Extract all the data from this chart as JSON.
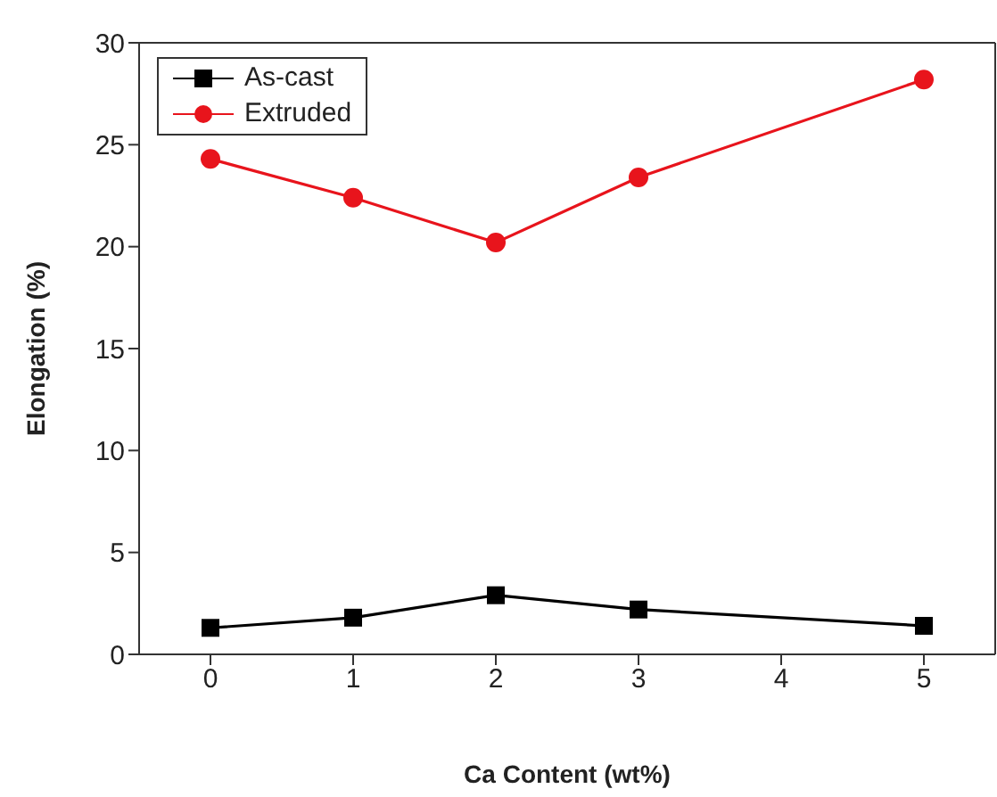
{
  "chart_data": {
    "type": "line",
    "xlabel": "Ca Content  (wt%)",
    "ylabel": "Elongation  (%)",
    "x": [
      0,
      1,
      2,
      3,
      5
    ],
    "series": [
      {
        "name": "As-cast",
        "color": "#000000",
        "marker": "square",
        "values": [
          1.3,
          1.8,
          2.9,
          2.2,
          1.4
        ]
      },
      {
        "name": "Extruded",
        "color": "#e8141c",
        "marker": "circle",
        "values": [
          24.3,
          22.4,
          20.2,
          23.4,
          28.2
        ]
      }
    ],
    "xlim": [
      -0.5,
      5.5
    ],
    "xticks": [
      0,
      1,
      2,
      3,
      4,
      5
    ],
    "ylim": [
      0,
      30
    ],
    "yticks": [
      0,
      5,
      10,
      15,
      20,
      25,
      30
    ],
    "legend": "top left",
    "grid": false,
    "line_style": "solid"
  }
}
